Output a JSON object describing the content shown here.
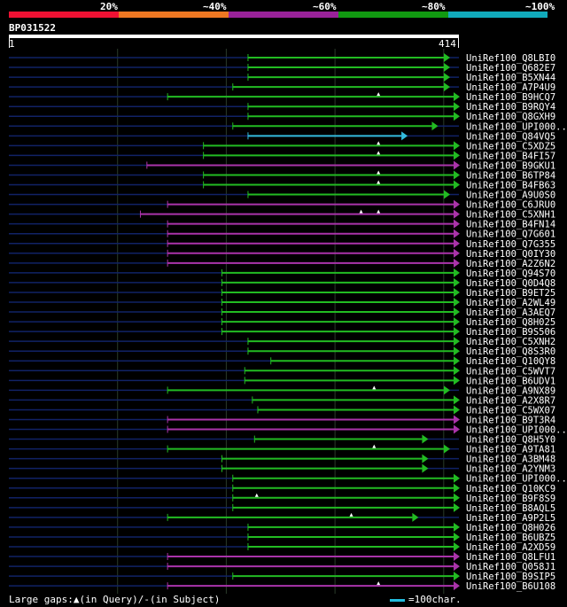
{
  "legend": {
    "labels": [
      "20%",
      "~40%",
      "~60%",
      "~80%",
      "~100%"
    ],
    "colors": [
      "#ee1133",
      "#ee7722",
      "#992299",
      "#119911",
      "#11aabb"
    ]
  },
  "query": {
    "id": "BP031522",
    "start": "1",
    "end": "414"
  },
  "footer": {
    "gaps_text": "Large gaps:▲(in Query)/-(in Subject)",
    "scale_text": "=100char."
  },
  "chart_data": {
    "type": "alignment",
    "query_length": 414,
    "grid_positions": [
      100,
      200,
      300,
      400
    ],
    "hits": [
      {
        "name": "UniRef100_Q8LBI0",
        "start": 220,
        "end": 405,
        "color": "green",
        "gaps": []
      },
      {
        "name": "UniRef100_Q682E7",
        "start": 220,
        "end": 405,
        "color": "green",
        "gaps": []
      },
      {
        "name": "UniRef100_B5XN44",
        "start": 220,
        "end": 405,
        "color": "green",
        "gaps": []
      },
      {
        "name": "UniRef100_A7P4U9",
        "start": 206,
        "end": 405,
        "color": "green",
        "gaps": []
      },
      {
        "name": "UniRef100_B9HCQ7",
        "start": 146,
        "end": 414,
        "color": "green",
        "gaps": [
          340
        ]
      },
      {
        "name": "UniRef100_B9RQY4",
        "start": 220,
        "end": 414,
        "color": "green",
        "gaps": []
      },
      {
        "name": "UniRef100_Q8GXH9",
        "start": 220,
        "end": 414,
        "color": "green",
        "gaps": []
      },
      {
        "name": "UniRef100_UPI000..",
        "start": 206,
        "end": 394,
        "color": "green",
        "gaps": []
      },
      {
        "name": "UniRef100_Q84VQ5",
        "start": 220,
        "end": 366,
        "color": "cyan",
        "gaps": []
      },
      {
        "name": "UniRef100_C5XDZ5",
        "start": 179,
        "end": 414,
        "color": "green",
        "gaps": [
          340
        ]
      },
      {
        "name": "UniRef100_B4FI57",
        "start": 179,
        "end": 414,
        "color": "green",
        "gaps": [
          340
        ]
      },
      {
        "name": "UniRef100_B9GKU1",
        "start": 127,
        "end": 414,
        "color": "purple",
        "gaps": []
      },
      {
        "name": "UniRef100_B6TP84",
        "start": 179,
        "end": 414,
        "color": "green",
        "gaps": [
          340
        ]
      },
      {
        "name": "UniRef100_B4FB63",
        "start": 179,
        "end": 414,
        "color": "green",
        "gaps": [
          340
        ]
      },
      {
        "name": "UniRef100_A9U0S0",
        "start": 220,
        "end": 405,
        "color": "green",
        "gaps": []
      },
      {
        "name": "UniRef100_C6JRU0",
        "start": 146,
        "end": 414,
        "color": "purple",
        "gaps": []
      },
      {
        "name": "UniRef100_C5XNH1",
        "start": 121,
        "end": 414,
        "color": "purple",
        "gaps": [
          324,
          340
        ]
      },
      {
        "name": "UniRef100_B4FN14",
        "start": 146,
        "end": 414,
        "color": "purple",
        "gaps": []
      },
      {
        "name": "UniRef100_Q7G601",
        "start": 146,
        "end": 414,
        "color": "purple",
        "gaps": []
      },
      {
        "name": "UniRef100_Q7G355",
        "start": 146,
        "end": 414,
        "color": "purple",
        "gaps": []
      },
      {
        "name": "UniRef100_Q0IY30",
        "start": 146,
        "end": 414,
        "color": "purple",
        "gaps": []
      },
      {
        "name": "UniRef100_A2Z6N2",
        "start": 146,
        "end": 414,
        "color": "purple",
        "gaps": []
      },
      {
        "name": "UniRef100_Q94S70",
        "start": 196,
        "end": 414,
        "color": "green",
        "gaps": []
      },
      {
        "name": "UniRef100_Q0D4Q8",
        "start": 196,
        "end": 414,
        "color": "green",
        "gaps": []
      },
      {
        "name": "UniRef100_B9ET25",
        "start": 196,
        "end": 414,
        "color": "green",
        "gaps": []
      },
      {
        "name": "UniRef100_A2WL49",
        "start": 196,
        "end": 414,
        "color": "green",
        "gaps": []
      },
      {
        "name": "UniRef100_A3AEQ7",
        "start": 196,
        "end": 414,
        "color": "green",
        "gaps": []
      },
      {
        "name": "UniRef100_Q8H025",
        "start": 196,
        "end": 414,
        "color": "green",
        "gaps": []
      },
      {
        "name": "UniRef100_B9S506",
        "start": 196,
        "end": 414,
        "color": "green",
        "gaps": []
      },
      {
        "name": "UniRef100_C5XNH2",
        "start": 220,
        "end": 414,
        "color": "green",
        "gaps": []
      },
      {
        "name": "UniRef100_Q8S3R0",
        "start": 220,
        "end": 414,
        "color": "green",
        "gaps": []
      },
      {
        "name": "UniRef100_Q10QY8",
        "start": 241,
        "end": 414,
        "color": "green",
        "gaps": []
      },
      {
        "name": "UniRef100_C5WVT7",
        "start": 217,
        "end": 414,
        "color": "green",
        "gaps": []
      },
      {
        "name": "UniRef100_B6UDV1",
        "start": 217,
        "end": 414,
        "color": "green",
        "gaps": []
      },
      {
        "name": "UniRef100_A9NX89",
        "start": 146,
        "end": 405,
        "color": "green",
        "gaps": [
          336
        ]
      },
      {
        "name": "UniRef100_A2X8R7",
        "start": 224,
        "end": 414,
        "color": "green",
        "gaps": []
      },
      {
        "name": "UniRef100_C5WX07",
        "start": 229,
        "end": 414,
        "color": "green",
        "gaps": []
      },
      {
        "name": "UniRef100_B9T3R4",
        "start": 146,
        "end": 414,
        "color": "purple",
        "gaps": []
      },
      {
        "name": "UniRef100_UPI000..",
        "start": 146,
        "end": 414,
        "color": "purple",
        "gaps": []
      },
      {
        "name": "UniRef100_Q8H5Y0",
        "start": 226,
        "end": 385,
        "color": "green",
        "gaps": []
      },
      {
        "name": "UniRef100_A9TA81",
        "start": 146,
        "end": 405,
        "color": "green",
        "gaps": [
          336
        ]
      },
      {
        "name": "UniRef100_A3BM48",
        "start": 196,
        "end": 385,
        "color": "green",
        "gaps": []
      },
      {
        "name": "UniRef100_A2YNM3",
        "start": 196,
        "end": 385,
        "color": "green",
        "gaps": []
      },
      {
        "name": "UniRef100_UPI000..",
        "start": 206,
        "end": 414,
        "color": "green",
        "gaps": []
      },
      {
        "name": "UniRef100_Q10KC9",
        "start": 206,
        "end": 414,
        "color": "green",
        "gaps": []
      },
      {
        "name": "UniRef100_B9F8S9",
        "start": 206,
        "end": 414,
        "color": "green",
        "gaps": [
          228
        ]
      },
      {
        "name": "UniRef100_B8AQL5",
        "start": 206,
        "end": 414,
        "color": "green",
        "gaps": []
      },
      {
        "name": "UniRef100_A9P2L5",
        "start": 146,
        "end": 376,
        "color": "green",
        "gaps": [
          315
        ]
      },
      {
        "name": "UniRef100_Q8H026",
        "start": 220,
        "end": 414,
        "color": "green",
        "gaps": []
      },
      {
        "name": "UniRef100_B6UBZ5",
        "start": 220,
        "end": 414,
        "color": "green",
        "gaps": []
      },
      {
        "name": "UniRef100_A2XD59",
        "start": 220,
        "end": 414,
        "color": "green",
        "gaps": []
      },
      {
        "name": "UniRef100_Q8LFU1",
        "start": 146,
        "end": 414,
        "color": "purple",
        "gaps": []
      },
      {
        "name": "UniRef100_Q058J1",
        "start": 146,
        "end": 414,
        "color": "purple",
        "gaps": []
      },
      {
        "name": "UniRef100_B9SIP5",
        "start": 206,
        "end": 414,
        "color": "green",
        "gaps": []
      },
      {
        "name": "UniRef100_B6U108",
        "start": 146,
        "end": 414,
        "color": "purple",
        "gaps": [
          340
        ]
      }
    ]
  }
}
